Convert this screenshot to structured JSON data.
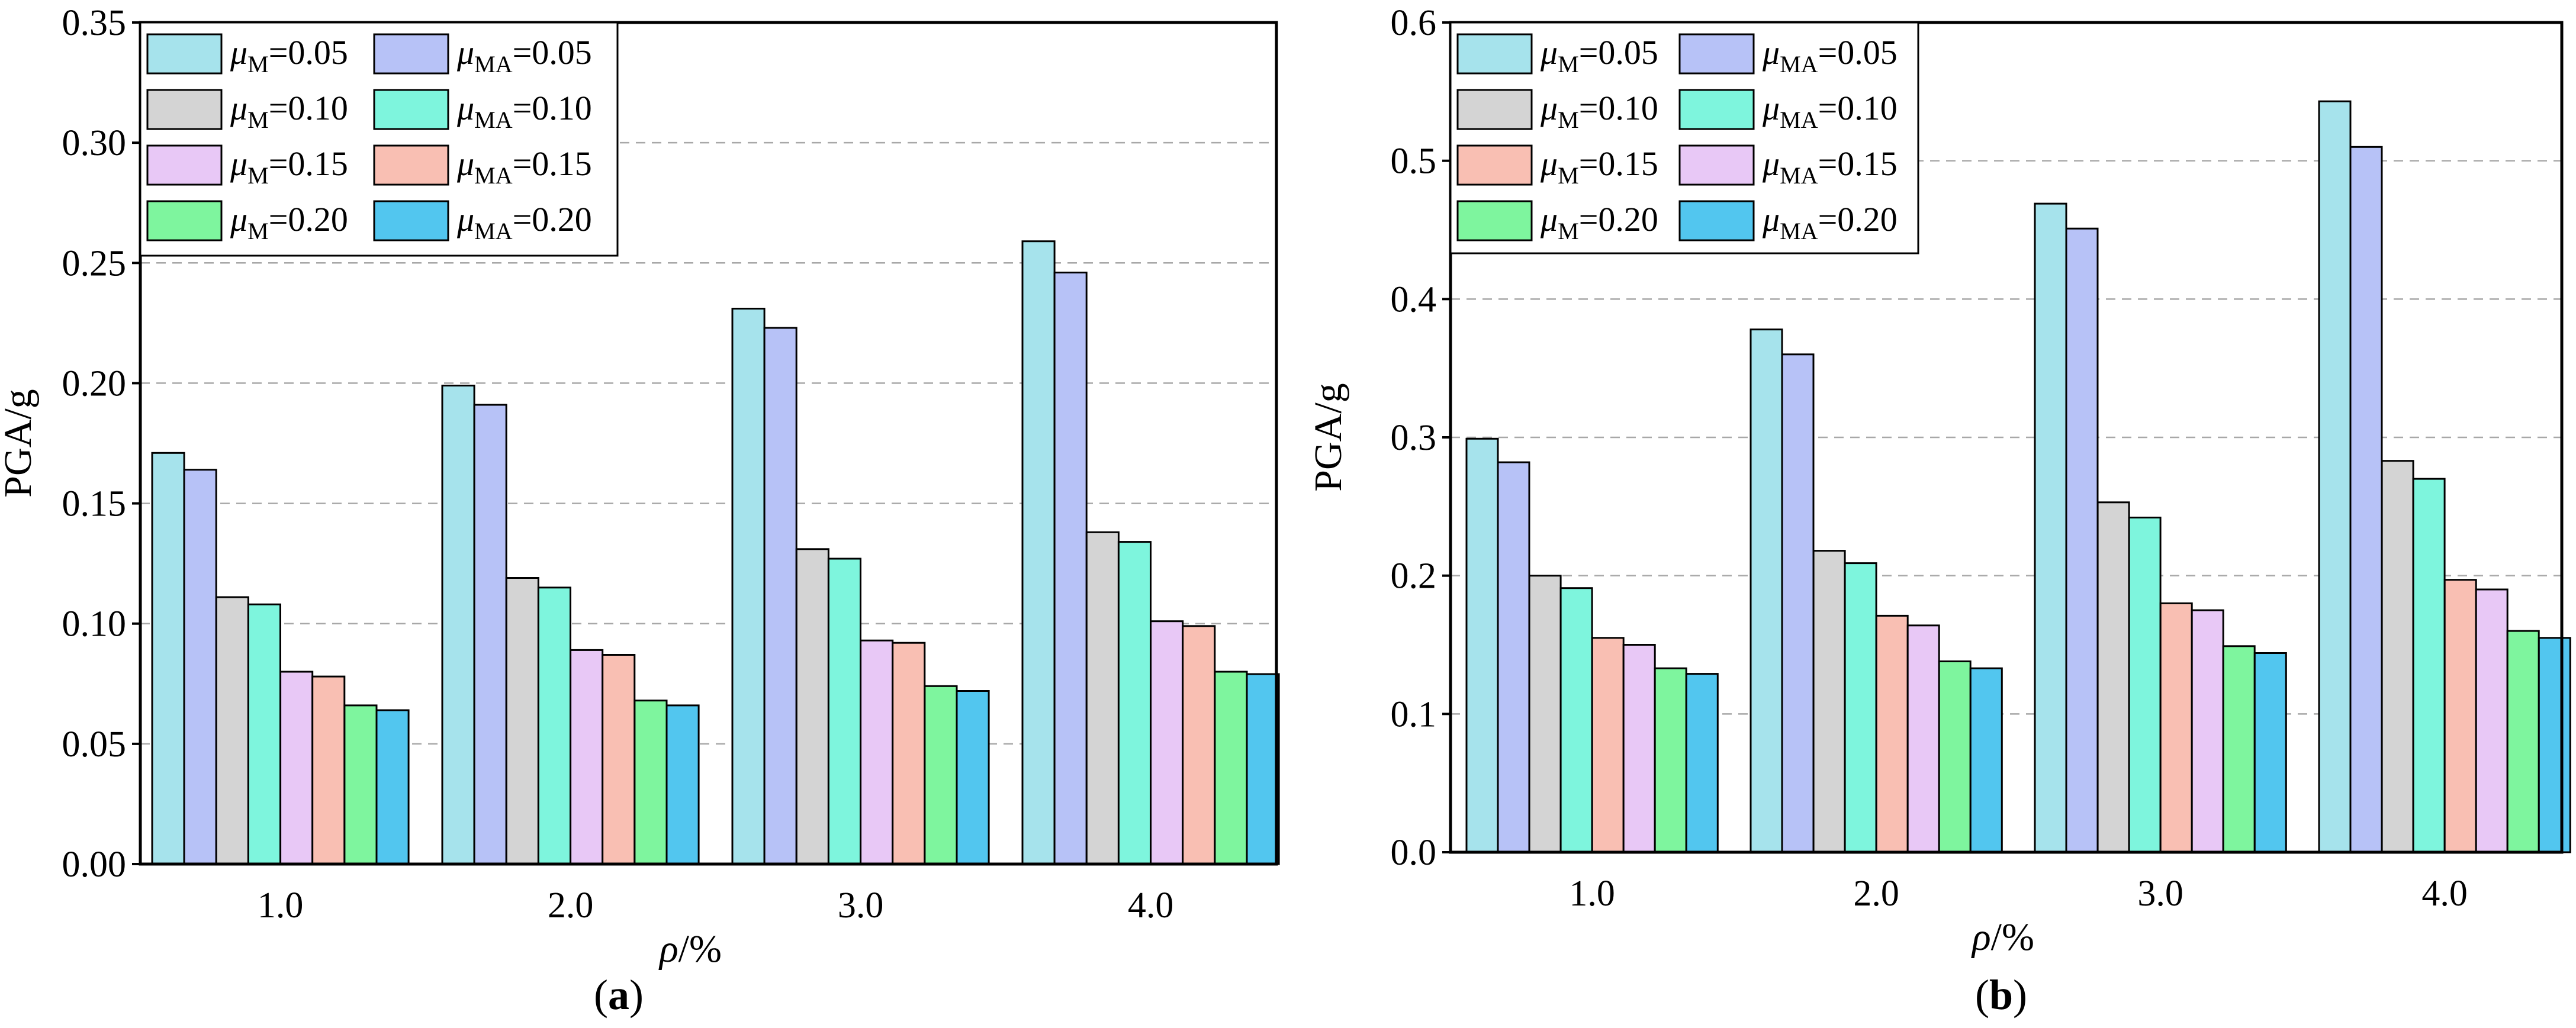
{
  "chart_data": [
    {
      "type": "bar",
      "panel": "a",
      "caption_letter": "a",
      "caption_open": "(",
      "caption_close": ")",
      "ylabel": "PGA/g",
      "xlabel_symbol": "ρ",
      "xlabel_unit": "/%",
      "ylim": [
        0,
        0.35
      ],
      "yticks": [
        "0.00",
        "0.05",
        "0.10",
        "0.15",
        "0.20",
        "0.25",
        "0.30",
        "0.35"
      ],
      "grid": true,
      "legend_position": "top-left",
      "categories": [
        "1.0",
        "2.0",
        "3.0",
        "4.0"
      ],
      "series": [
        {
          "sym": "μ",
          "sub": "M",
          "value_label": "=0.05",
          "color": "#a6e3ec",
          "values": [
            0.171,
            0.199,
            0.231,
            0.259
          ]
        },
        {
          "sym": "μ",
          "sub": "MA",
          "value_label": "=0.05",
          "color": "#b7c2f7",
          "values": [
            0.164,
            0.191,
            0.223,
            0.246
          ]
        },
        {
          "sym": "μ",
          "sub": "M",
          "value_label": "=0.10",
          "color": "#d4d4d4",
          "values": [
            0.111,
            0.119,
            0.131,
            0.138
          ]
        },
        {
          "sym": "μ",
          "sub": "MA",
          "value_label": "=0.10",
          "color": "#7ef5dd",
          "values": [
            0.108,
            0.115,
            0.127,
            0.134
          ]
        },
        {
          "sym": "μ",
          "sub": "M",
          "value_label": "=0.15",
          "color": "#e8c8f6",
          "values": [
            0.08,
            0.089,
            0.093,
            0.101
          ]
        },
        {
          "sym": "μ",
          "sub": "MA",
          "value_label": "=0.15",
          "color": "#f9bfb3",
          "values": [
            0.078,
            0.087,
            0.092,
            0.099
          ]
        },
        {
          "sym": "μ",
          "sub": "M",
          "value_label": "=0.20",
          "color": "#7ef59e",
          "values": [
            0.066,
            0.068,
            0.074,
            0.08
          ]
        },
        {
          "sym": "μ",
          "sub": "MA",
          "value_label": "=0.20",
          "color": "#52c6ef",
          "values": [
            0.064,
            0.066,
            0.072,
            0.079
          ]
        }
      ]
    },
    {
      "type": "bar",
      "panel": "b",
      "caption_letter": "b",
      "caption_open": "(",
      "caption_close": ")",
      "ylabel": "PGA/g",
      "xlabel_symbol": "ρ",
      "xlabel_unit": "/%",
      "ylim": [
        0,
        0.6
      ],
      "yticks": [
        "0.0",
        "0.1",
        "0.2",
        "0.3",
        "0.4",
        "0.5",
        "0.6"
      ],
      "grid": true,
      "legend_position": "top-left",
      "categories": [
        "1.0",
        "2.0",
        "3.0",
        "4.0"
      ],
      "series": [
        {
          "sym": "μ",
          "sub": "M",
          "value_label": "=0.05",
          "color": "#a6e3ec",
          "values": [
            0.299,
            0.378,
            0.469,
            0.543
          ]
        },
        {
          "sym": "μ",
          "sub": "MA",
          "value_label": "=0.05",
          "color": "#b7c2f7",
          "values": [
            0.282,
            0.36,
            0.451,
            0.51
          ]
        },
        {
          "sym": "μ",
          "sub": "M",
          "value_label": "=0.10",
          "color": "#d4d4d4",
          "values": [
            0.2,
            0.218,
            0.253,
            0.283
          ]
        },
        {
          "sym": "μ",
          "sub": "MA",
          "value_label": "=0.10",
          "color": "#7ef5dd",
          "values": [
            0.191,
            0.209,
            0.242,
            0.27
          ]
        },
        {
          "sym": "μ",
          "sub": "M",
          "value_label": "=0.15",
          "color": "#f9bfb3",
          "values": [
            0.155,
            0.171,
            0.18,
            0.197
          ]
        },
        {
          "sym": "μ",
          "sub": "MA",
          "value_label": "=0.15",
          "color": "#e8c8f6",
          "values": [
            0.15,
            0.164,
            0.175,
            0.19
          ]
        },
        {
          "sym": "μ",
          "sub": "M",
          "value_label": "=0.20",
          "color": "#7ef59e",
          "values": [
            0.133,
            0.138,
            0.149,
            0.16
          ]
        },
        {
          "sym": "μ",
          "sub": "MA",
          "value_label": "=0.20",
          "color": "#52c6ef",
          "values": [
            0.129,
            0.133,
            0.144,
            0.155
          ]
        }
      ]
    }
  ]
}
